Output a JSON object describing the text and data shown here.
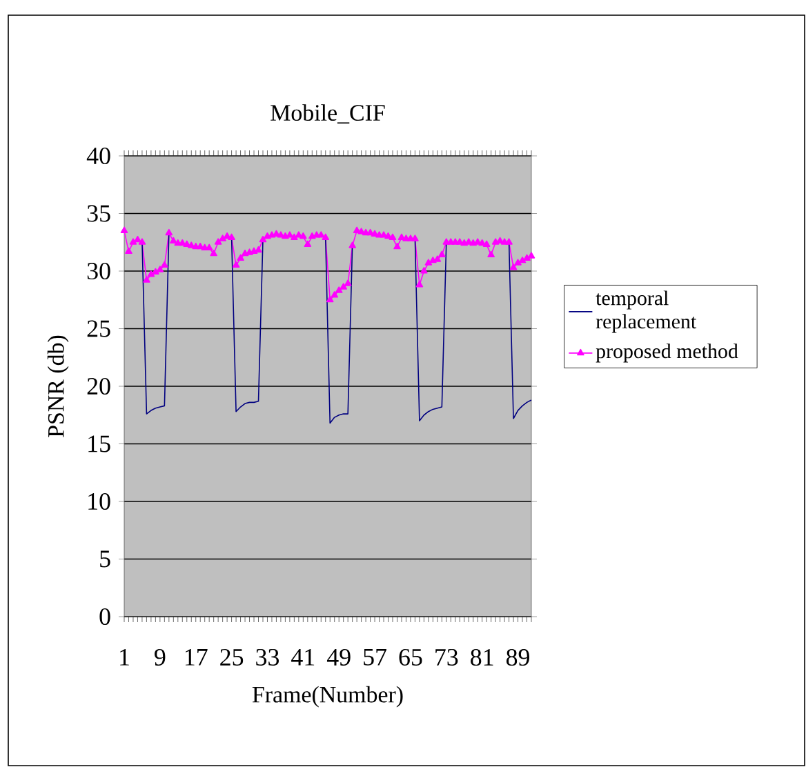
{
  "chart_data": {
    "type": "line",
    "title": "Mobile_CIF",
    "xlabel": "Frame(Number)",
    "ylabel": "PSNR (db)",
    "categories": [
      "1",
      null,
      null,
      null,
      null,
      null,
      null,
      null,
      "9",
      null,
      null,
      null,
      null,
      null,
      null,
      null,
      "17",
      null,
      null,
      null,
      null,
      null,
      null,
      null,
      "25",
      null,
      null,
      null,
      null,
      null,
      null,
      null,
      "33",
      null,
      null,
      null,
      null,
      null,
      null,
      null,
      "41",
      null,
      null,
      null,
      null,
      null,
      null,
      null,
      "49",
      null,
      null,
      null,
      null,
      null,
      null,
      null,
      "57",
      null,
      null,
      null,
      null,
      null,
      null,
      null,
      "65",
      null,
      null,
      null,
      null,
      null,
      null,
      null,
      "73",
      null,
      null,
      null,
      null,
      null,
      null,
      null,
      "81",
      null,
      null,
      null,
      null,
      null,
      null,
      null,
      "89",
      null,
      null,
      null
    ],
    "ylim": [
      0,
      40
    ],
    "yticks": [
      0,
      5,
      10,
      15,
      20,
      25,
      30,
      35,
      40
    ],
    "grid": "y",
    "legend": "right",
    "series": [
      {
        "name": "temporal replacement",
        "color": "#000080",
        "marker": "none",
        "values": [
          null,
          null,
          null,
          null,
          32.5,
          17.6,
          17.9,
          18.1,
          18.2,
          18.3,
          33.3,
          null,
          null,
          null,
          null,
          null,
          null,
          null,
          null,
          null,
          null,
          null,
          null,
          null,
          32.9,
          17.8,
          18.2,
          18.5,
          18.6,
          18.6,
          18.7,
          32.7,
          null,
          null,
          null,
          null,
          null,
          null,
          null,
          null,
          null,
          null,
          null,
          null,
          null,
          32.9,
          16.8,
          17.3,
          17.5,
          17.6,
          17.6,
          32.2,
          null,
          null,
          null,
          null,
          null,
          null,
          null,
          null,
          null,
          null,
          null,
          null,
          null,
          32.8,
          17.0,
          17.5,
          17.8,
          18.0,
          18.1,
          18.2,
          32.5,
          null,
          null,
          null,
          null,
          null,
          null,
          null,
          null,
          null,
          null,
          null,
          null,
          null,
          32.5,
          17.2,
          17.9,
          18.3,
          18.6,
          18.8
        ]
      },
      {
        "name": "proposed method",
        "color": "#ff00ff",
        "marker": "triangle",
        "values": [
          33.5,
          31.7,
          32.5,
          32.7,
          32.5,
          29.2,
          29.7,
          29.9,
          30.1,
          30.5,
          33.3,
          32.6,
          32.4,
          32.4,
          32.3,
          32.2,
          32.1,
          32.1,
          32.0,
          32.0,
          31.5,
          32.5,
          32.8,
          33.0,
          32.9,
          30.5,
          31.1,
          31.5,
          31.6,
          31.7,
          31.8,
          32.7,
          33.0,
          33.1,
          33.2,
          33.1,
          33.0,
          33.1,
          32.9,
          33.1,
          33.0,
          32.3,
          33.0,
          33.1,
          33.1,
          32.9,
          27.5,
          27.9,
          28.3,
          28.6,
          28.9,
          32.2,
          33.5,
          33.4,
          33.3,
          33.3,
          33.2,
          33.1,
          33.1,
          33.0,
          32.9,
          32.1,
          32.9,
          32.8,
          32.8,
          32.8,
          28.8,
          30.0,
          30.7,
          30.9,
          31.0,
          31.4,
          32.5,
          32.5,
          32.5,
          32.5,
          32.4,
          32.5,
          32.4,
          32.5,
          32.4,
          32.3,
          31.4,
          32.5,
          32.6,
          32.5,
          32.5,
          30.3,
          30.7,
          30.9,
          31.1,
          31.3
        ]
      }
    ]
  }
}
